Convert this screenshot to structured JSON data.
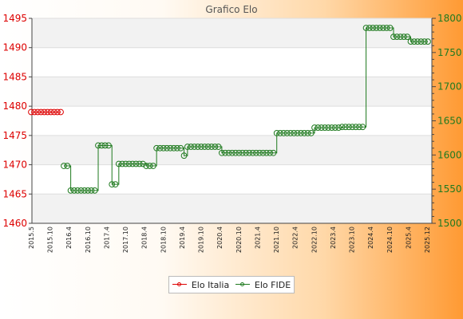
{
  "chart_data": {
    "type": "line",
    "title": "Grafico Elo",
    "left_axis": {
      "ylim": [
        1460,
        1495
      ],
      "ticks": [
        "1460",
        "1465",
        "1470",
        "1475",
        "1480",
        "1485",
        "1490",
        "1495"
      ],
      "color": "#dd0000"
    },
    "right_axis": {
      "ylim": [
        1500,
        1800
      ],
      "ticks": [
        "1500",
        "1550",
        "1600",
        "1650",
        "1700",
        "1750",
        "1800"
      ],
      "color": "#1f7a1f"
    },
    "x_tick_labels": [
      "2015.5",
      "2015.10",
      "2016.4",
      "2016.10",
      "2017.4",
      "2017.10",
      "2018.4",
      "2018.10",
      "2019.4",
      "2019.10",
      "2020.4",
      "2020.10",
      "2021.4",
      "2021.10",
      "2022.4",
      "2022.10",
      "2023.4",
      "2023.10",
      "2024.4",
      "2024.10",
      "2025.4",
      "2025.12"
    ],
    "series": [
      {
        "name": "Elo Italia",
        "axis": "left",
        "color": "#dd0000",
        "values": [
          1479,
          1479,
          1479,
          1479,
          1479,
          1479,
          1479,
          1479,
          1479,
          1479
        ]
      },
      {
        "name": "Elo FIDE",
        "axis": "right",
        "color": "#1f7a1f",
        "segments": [
          {
            "count": 2,
            "y": 1584
          },
          {
            "count": 8,
            "y": 1548
          },
          {
            "count": 4,
            "y": 1614
          },
          {
            "count": 2,
            "y": 1557
          },
          {
            "count": 8,
            "y": 1587
          },
          {
            "count": 3,
            "y": 1584
          },
          {
            "count": 8,
            "y": 1610
          },
          {
            "count": 1,
            "y": 1599
          },
          {
            "count": 10,
            "y": 1612
          },
          {
            "count": 16,
            "y": 1603
          },
          {
            "count": 11,
            "y": 1632
          },
          {
            "count": 8,
            "y": 1640
          },
          {
            "count": 7,
            "y": 1641
          },
          {
            "count": 8,
            "y": 1786
          },
          {
            "count": 5,
            "y": 1773
          },
          {
            "count": 6,
            "y": 1766
          }
        ]
      }
    ],
    "legend_position": "bottom",
    "grid": "horizontal bands"
  }
}
